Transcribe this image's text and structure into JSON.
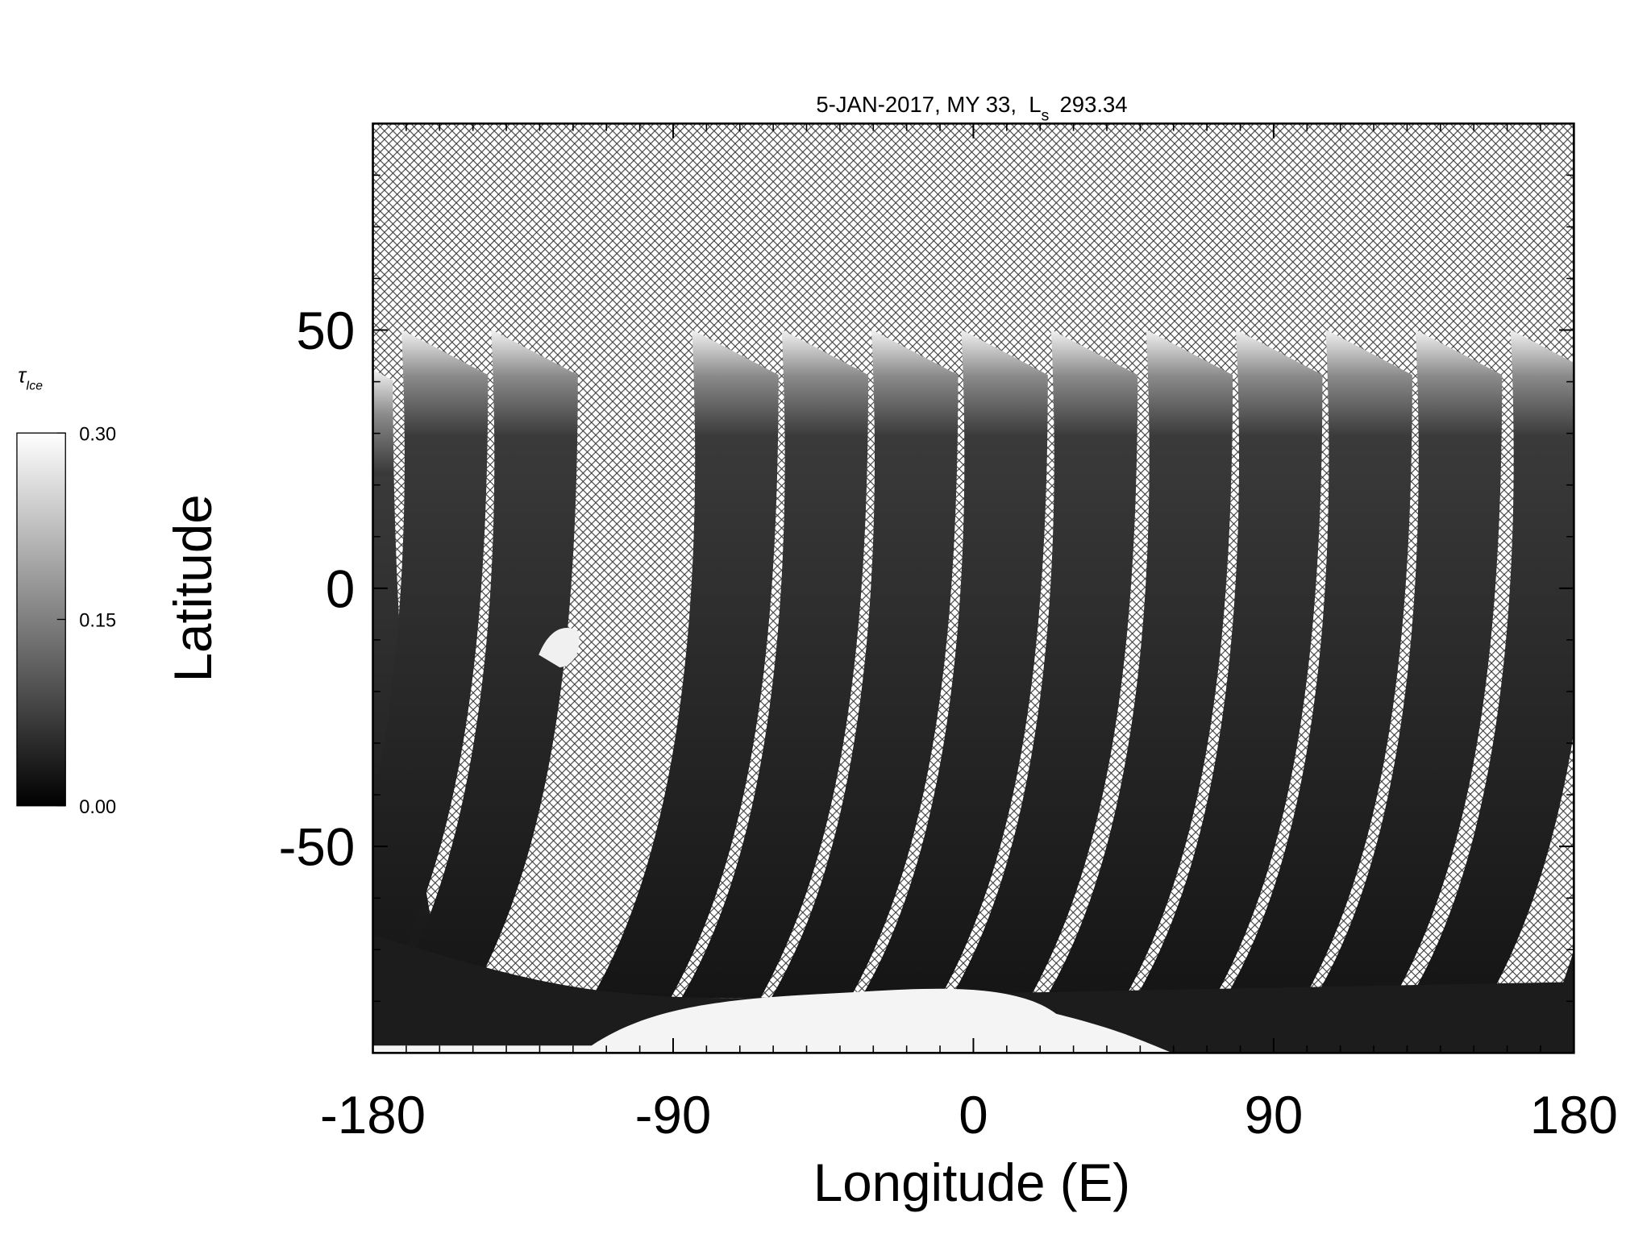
{
  "chart_data": {
    "type": "heatmap",
    "title": "5-JAN-2017, MY 33,  L",
    "title_subscript": "s",
    "title_suffix": "293.34",
    "x_label": "Longitude (E)",
    "y_label": "Latitude",
    "xlim": [
      -180,
      180
    ],
    "xticks": [
      -180,
      -90,
      0,
      90,
      180
    ],
    "xminorticks": [
      -170,
      -160,
      -150,
      -140,
      -130,
      -120,
      -110,
      -100,
      -80,
      -70,
      -60,
      -50,
      -40,
      -30,
      -20,
      -10,
      10,
      20,
      30,
      40,
      50,
      60,
      70,
      80,
      100,
      110,
      120,
      130,
      140,
      150,
      160,
      170
    ],
    "ylim": [
      -90,
      90
    ],
    "yticks": [
      -50,
      0,
      50
    ],
    "yminorticks": [
      -80,
      -70,
      -60,
      -40,
      -30,
      -20,
      -10,
      10,
      20,
      30,
      40,
      60,
      70,
      80
    ],
    "colorbar": {
      "label": "τ",
      "label_subscript": "Ice",
      "clim": [
        0,
        0.3
      ],
      "ticks": [
        {
          "value": 0,
          "label": "0.00"
        },
        {
          "value": 0.15,
          "label": "0.15"
        },
        {
          "value": 0.3,
          "label": "0.30"
        }
      ],
      "colors": [
        "#000000",
        "#ffffff"
      ]
    }
  }
}
